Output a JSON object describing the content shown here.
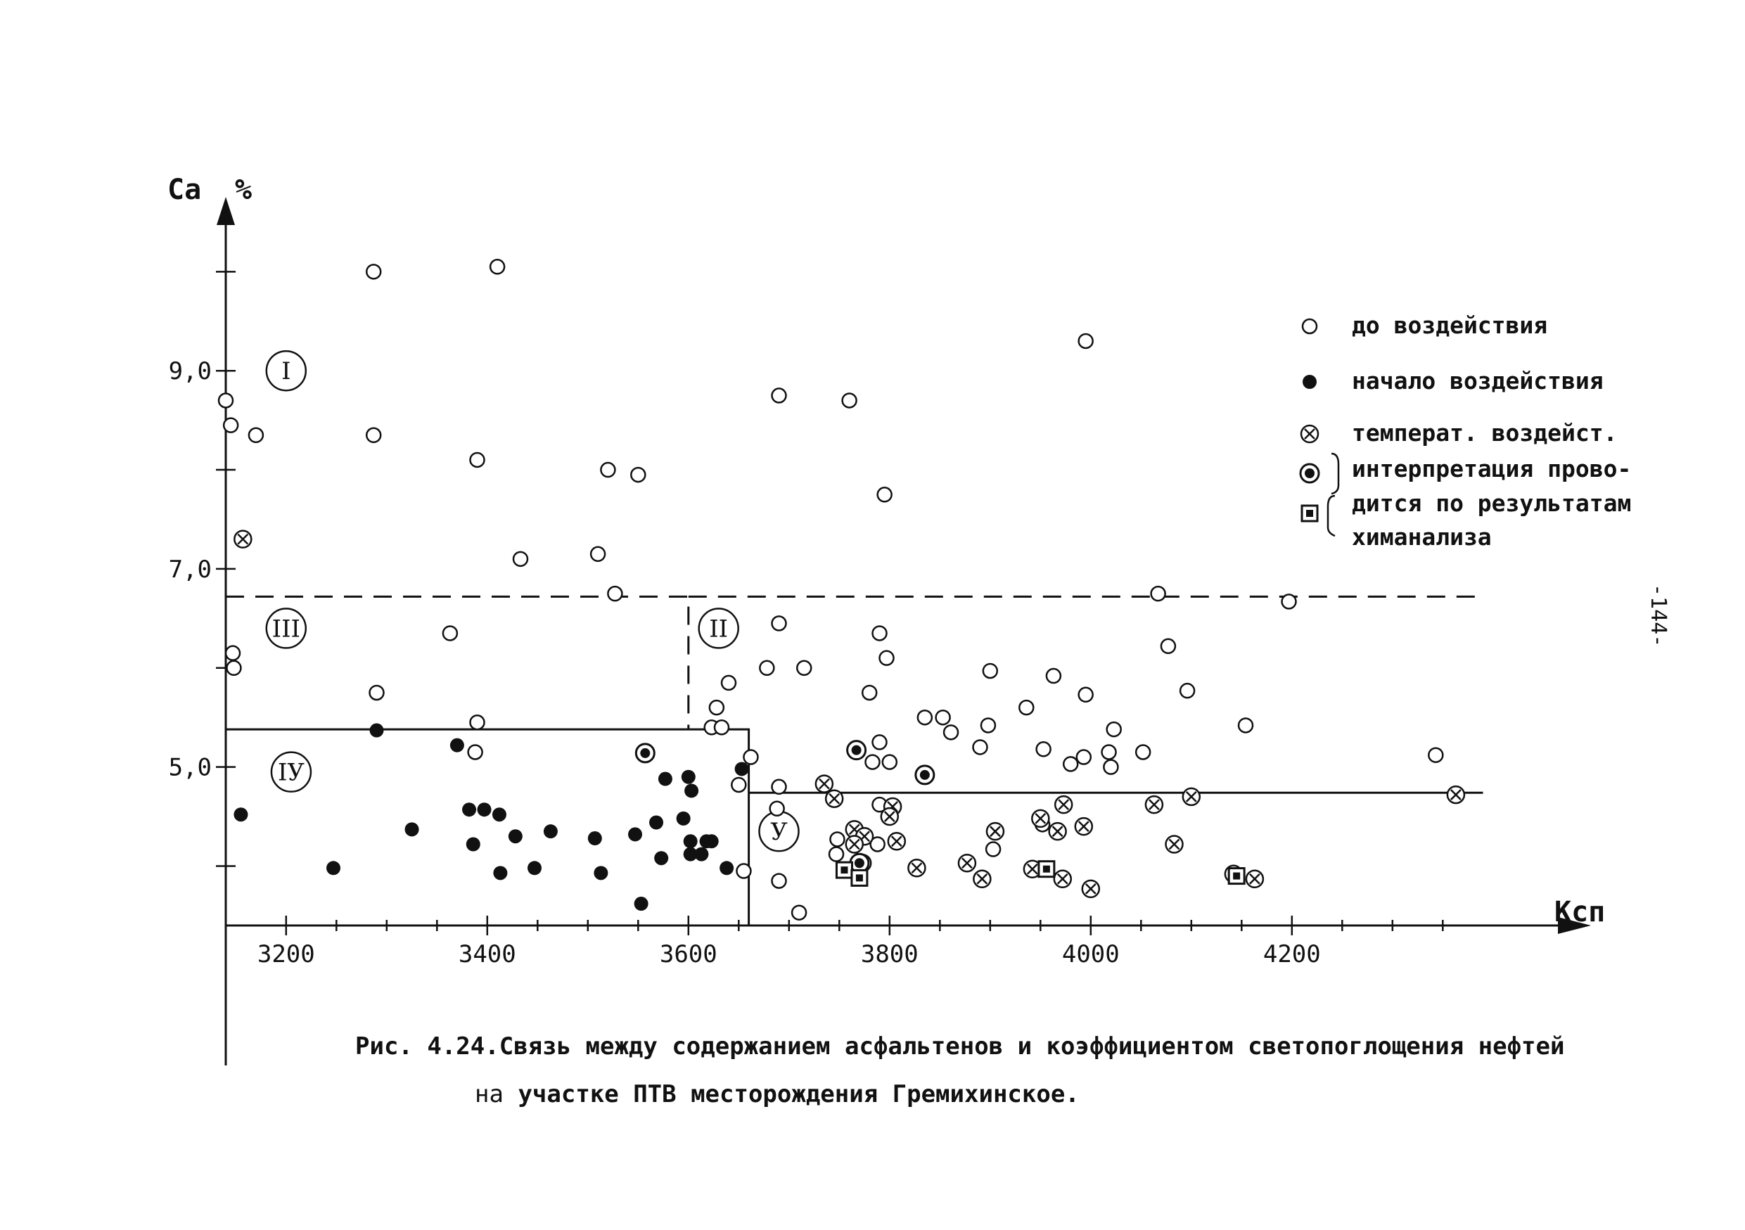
{
  "chart_data": {
    "type": "scatter",
    "xlabel": "Ксп",
    "ylabel": "Са",
    "ylabel_unit": "%",
    "x_ticks": [
      3200,
      3400,
      3600,
      3800,
      4000,
      4200
    ],
    "y_ticks": [
      {
        "value": 5.0,
        "label": "5,0"
      },
      {
        "value": 7.0,
        "label": "7,0"
      },
      {
        "value": 9.0,
        "label": "9,0"
      }
    ],
    "xlim": [
      3140,
      4440
    ],
    "ylim": [
      3.4,
      10.4
    ],
    "grid": false,
    "legend_placement": "top-right",
    "legend": {
      "entries": [
        {
          "marker": "open",
          "label": "до воздействия"
        },
        {
          "marker": "filled",
          "label": "начало воздействия"
        },
        {
          "marker": "crossed",
          "label": "температ. воздейст."
        }
      ],
      "note_markers": [
        "ring",
        "square"
      ],
      "note_lines": [
        "интерпретация прово-",
        "дится по результатам",
        "химанализа"
      ]
    },
    "regions": [
      {
        "label": "I",
        "x": 3200,
        "y": 9.0
      },
      {
        "label": "II",
        "x": 3630,
        "y": 6.4
      },
      {
        "label": "III",
        "x": 3200,
        "y": 6.4
      },
      {
        "label": "IУ",
        "x": 3205,
        "y": 4.95
      },
      {
        "label": "У",
        "x": 3690,
        "y": 4.35
      }
    ],
    "boundaries": [
      {
        "style": "dashed",
        "points": [
          [
            3140,
            6.72
          ],
          [
            3600,
            6.72
          ],
          [
            3600,
            5.38
          ]
        ]
      },
      {
        "style": "dashed",
        "points": [
          [
            3600,
            6.72
          ],
          [
            4390,
            6.72
          ]
        ]
      },
      {
        "style": "solid",
        "points": [
          [
            3140,
            5.38
          ],
          [
            3660,
            5.38
          ],
          [
            3660,
            3.4
          ]
        ]
      },
      {
        "style": "solid",
        "points": [
          [
            3660,
            4.74
          ],
          [
            4390,
            4.74
          ]
        ]
      }
    ],
    "series": [
      {
        "name": "до воздействия",
        "marker": "open",
        "points": [
          [
            3287,
            10.0
          ],
          [
            3410,
            10.05
          ],
          [
            3995,
            9.3
          ],
          [
            3140,
            8.7
          ],
          [
            3145,
            8.45
          ],
          [
            3170,
            8.35
          ],
          [
            3287,
            8.35
          ],
          [
            3690,
            8.75
          ],
          [
            3760,
            8.7
          ],
          [
            3390,
            8.1
          ],
          [
            3520,
            8.0
          ],
          [
            3550,
            7.95
          ],
          [
            3795,
            7.75
          ],
          [
            3433,
            7.1
          ],
          [
            3510,
            7.15
          ],
          [
            3527,
            6.75
          ],
          [
            4067,
            6.75
          ],
          [
            4197,
            6.67
          ],
          [
            3363,
            6.35
          ],
          [
            3147,
            6.15
          ],
          [
            3148,
            6.0
          ],
          [
            3690,
            6.45
          ],
          [
            3790,
            6.35
          ],
          [
            3797,
            6.1
          ],
          [
            4077,
            6.22
          ],
          [
            3290,
            5.75
          ],
          [
            3390,
            5.45
          ],
          [
            3388,
            5.15
          ],
          [
            3678,
            6.0
          ],
          [
            3715,
            6.0
          ],
          [
            3640,
            5.85
          ],
          [
            3628,
            5.6
          ],
          [
            3623,
            5.4
          ],
          [
            3633,
            5.4
          ],
          [
            3780,
            5.75
          ],
          [
            3835,
            5.5
          ],
          [
            3853,
            5.5
          ],
          [
            3861,
            5.35
          ],
          [
            3790,
            5.25
          ],
          [
            3783,
            5.05
          ],
          [
            3800,
            5.05
          ],
          [
            3900,
            5.97
          ],
          [
            3898,
            5.42
          ],
          [
            3890,
            5.2
          ],
          [
            3936,
            5.6
          ],
          [
            3963,
            5.92
          ],
          [
            3953,
            5.18
          ],
          [
            3995,
            5.73
          ],
          [
            3993,
            5.1
          ],
          [
            3980,
            5.03
          ],
          [
            4018,
            5.15
          ],
          [
            4020,
            5.0
          ],
          [
            4023,
            5.38
          ],
          [
            4052,
            5.15
          ],
          [
            4096,
            5.77
          ],
          [
            4154,
            5.42
          ],
          [
            4343,
            5.12
          ],
          [
            3662,
            5.1
          ],
          [
            3650,
            4.82
          ],
          [
            3690,
            4.8
          ],
          [
            3688,
            4.58
          ],
          [
            3790,
            4.62
          ],
          [
            3748,
            4.27
          ],
          [
            3747,
            4.12
          ],
          [
            3788,
            4.22
          ],
          [
            3903,
            4.17
          ],
          [
            3952,
            4.42
          ],
          [
            3710,
            3.53
          ],
          [
            3655,
            3.95
          ],
          [
            3690,
            3.85
          ]
        ]
      },
      {
        "name": "начало воздействия",
        "marker": "filled",
        "points": [
          [
            3290,
            5.37
          ],
          [
            3370,
            5.22
          ],
          [
            3155,
            4.52
          ],
          [
            3325,
            4.37
          ],
          [
            3247,
            3.98
          ],
          [
            3382,
            4.57
          ],
          [
            3397,
            4.57
          ],
          [
            3412,
            4.52
          ],
          [
            3428,
            4.3
          ],
          [
            3463,
            4.35
          ],
          [
            3507,
            4.28
          ],
          [
            3547,
            4.32
          ],
          [
            3568,
            4.44
          ],
          [
            3595,
            4.48
          ],
          [
            3602,
            4.25
          ],
          [
            3618,
            4.25
          ],
          [
            3386,
            4.22
          ],
          [
            3413,
            3.93
          ],
          [
            3447,
            3.98
          ],
          [
            3513,
            3.93
          ],
          [
            3573,
            4.08
          ],
          [
            3602,
            4.12
          ],
          [
            3613,
            4.12
          ],
          [
            3623,
            4.25
          ],
          [
            3638,
            3.98
          ],
          [
            3577,
            4.88
          ],
          [
            3600,
            4.9
          ],
          [
            3603,
            4.76
          ],
          [
            3653,
            4.98
          ],
          [
            3558,
            5.14
          ],
          [
            3553,
            3.62
          ]
        ]
      },
      {
        "name": "температ. воздейст.",
        "marker": "crossed",
        "points": [
          [
            3157,
            7.3
          ],
          [
            3735,
            4.83
          ],
          [
            3745,
            4.68
          ],
          [
            3765,
            4.37
          ],
          [
            3775,
            4.3
          ],
          [
            3803,
            4.6
          ],
          [
            3800,
            4.5
          ],
          [
            3807,
            4.25
          ],
          [
            3905,
            4.35
          ],
          [
            3950,
            4.48
          ],
          [
            3967,
            4.35
          ],
          [
            3973,
            4.62
          ],
          [
            3993,
            4.4
          ],
          [
            4063,
            4.62
          ],
          [
            4100,
            4.7
          ],
          [
            4083,
            4.22
          ],
          [
            3827,
            3.98
          ],
          [
            3877,
            4.03
          ],
          [
            3892,
            3.87
          ],
          [
            3942,
            3.97
          ],
          [
            3972,
            3.87
          ],
          [
            4000,
            3.77
          ],
          [
            4142,
            3.92
          ],
          [
            4163,
            3.87
          ],
          [
            4363,
            4.72
          ],
          [
            3765,
            4.22
          ],
          [
            3773,
            4.03
          ]
        ]
      },
      {
        "name": "интерпретация по химанализу",
        "marker": "ring",
        "points": [
          [
            3557,
            5.14
          ],
          [
            3767,
            5.17
          ],
          [
            3835,
            4.92
          ],
          [
            3770,
            4.03
          ]
        ]
      },
      {
        "name": "химанализ (квадрат)",
        "marker": "square",
        "points": [
          [
            3755,
            3.96
          ],
          [
            3770,
            3.88
          ],
          [
            3956,
            3.97
          ],
          [
            4145,
            3.9
          ]
        ]
      }
    ]
  },
  "caption": {
    "line1": "Рис. 4.24.Связь между содержанием асфальтенов и коэффициентом  светопоглощения нефтей",
    "line2_prefix": "на",
    "line2": "участке ПТВ месторождения  Гремихинское."
  },
  "page_number": "-144-"
}
